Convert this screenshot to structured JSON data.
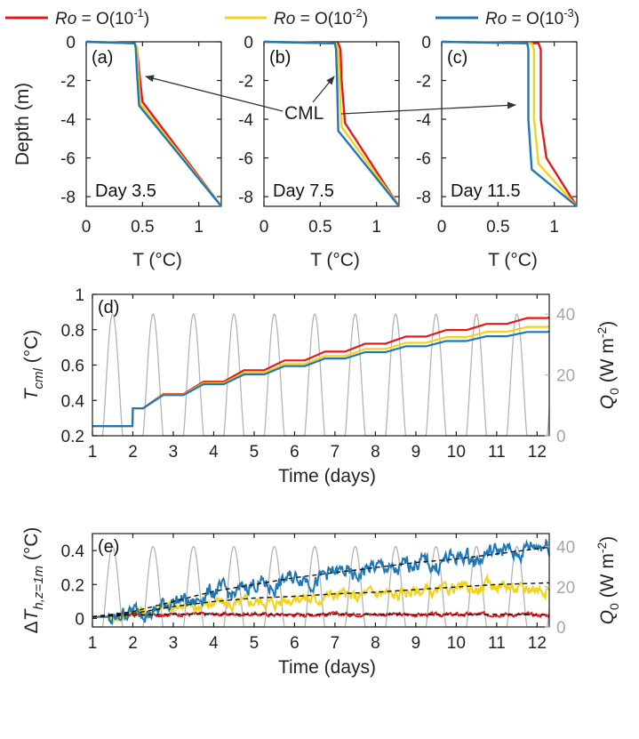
{
  "colors": {
    "ro1": "#e3191c",
    "ro2": "#f2d31b",
    "ro3": "#1f77b4",
    "forcing": "#b4b4b4",
    "mean": "#111111"
  },
  "legend": {
    "ro1": {
      "sym": "Ro",
      "eq": " = O(10",
      "exp": "-1",
      "close": ")"
    },
    "ro2": {
      "sym": "Ro",
      "eq": " = O(10",
      "exp": "-2",
      "close": ")"
    },
    "ro3": {
      "sym": "Ro",
      "eq": " = O(10",
      "exp": "-3",
      "close": ")"
    }
  },
  "annotation": "CML",
  "chart_data": [
    {
      "type": "line",
      "panel": "(a)",
      "annotation": "Day 3.5",
      "xlabel": "T (°C)",
      "ylabel": "Depth (m)",
      "xlim": [
        0,
        1.2
      ],
      "ylim": [
        -8.5,
        0
      ],
      "xticks": [
        "0",
        "0.5",
        "1"
      ],
      "yticks": [
        "0",
        "-2",
        "-4",
        "-6",
        "-8"
      ],
      "series": [
        {
          "name": "Ro = O(10^-1)",
          "x": [
            0.0,
            0.43,
            0.45,
            0.47,
            0.5,
            1.2
          ],
          "y": [
            0.0,
            -0.08,
            -0.3,
            -1.5,
            -3.1,
            -8.5
          ]
        },
        {
          "name": "Ro = O(10^-2)",
          "x": [
            0.0,
            0.43,
            0.45,
            0.46,
            0.48,
            1.2
          ],
          "y": [
            0.0,
            -0.08,
            -0.3,
            -1.5,
            -3.2,
            -8.5
          ]
        },
        {
          "name": "Ro = O(10^-3)",
          "x": [
            0.0,
            0.43,
            0.44,
            0.45,
            0.47,
            1.2
          ],
          "y": [
            0.0,
            -0.08,
            -0.3,
            -1.5,
            -3.3,
            -8.5
          ]
        }
      ]
    },
    {
      "type": "line",
      "panel": "(b)",
      "annotation": "Day 7.5",
      "xlabel": "T (°C)",
      "ylabel": "",
      "xlim": [
        0,
        1.2
      ],
      "ylim": [
        -8.5,
        0
      ],
      "xticks": [
        "0",
        "0.5",
        "1"
      ],
      "yticks": [
        "0",
        "-2",
        "-4",
        "-6",
        "-8"
      ],
      "series": [
        {
          "name": "Ro = O(10^-1)",
          "x": [
            0.0,
            0.66,
            0.68,
            0.69,
            0.72,
            1.2
          ],
          "y": [
            0.0,
            -0.08,
            -0.4,
            -2.0,
            -4.2,
            -8.5
          ]
        },
        {
          "name": "Ro = O(10^-2)",
          "x": [
            0.0,
            0.64,
            0.66,
            0.67,
            0.69,
            1.2
          ],
          "y": [
            0.0,
            -0.08,
            -0.4,
            -2.0,
            -4.4,
            -8.5
          ]
        },
        {
          "name": "Ro = O(10^-3)",
          "x": [
            0.0,
            0.63,
            0.64,
            0.65,
            0.66,
            1.2
          ],
          "y": [
            0.0,
            -0.08,
            -0.4,
            -2.0,
            -4.6,
            -8.5
          ]
        }
      ]
    },
    {
      "type": "line",
      "panel": "(c)",
      "annotation": "Day 11.5",
      "xlabel": "T (°C)",
      "ylabel": "",
      "xlim": [
        0,
        1.2
      ],
      "ylim": [
        -8.5,
        0
      ],
      "xticks": [
        "0",
        "0.5",
        "1"
      ],
      "yticks": [
        "0",
        "-2",
        "-4",
        "-6",
        "-8"
      ],
      "series": [
        {
          "name": "Ro = O(10^-1)",
          "x": [
            0.0,
            0.86,
            0.88,
            0.88,
            0.88,
            0.93,
            1.2
          ],
          "y": [
            0.0,
            -0.08,
            -0.4,
            -1.5,
            -4.0,
            -6.0,
            -8.5
          ]
        },
        {
          "name": "Ro = O(10^-2)",
          "x": [
            0.0,
            0.8,
            0.82,
            0.82,
            0.82,
            0.86,
            1.2
          ],
          "y": [
            0.0,
            -0.08,
            -0.4,
            -1.5,
            -4.0,
            -6.3,
            -8.5
          ]
        },
        {
          "name": "Ro = O(10^-3)",
          "x": [
            0.0,
            0.76,
            0.77,
            0.77,
            0.77,
            0.8,
            1.2
          ],
          "y": [
            0.0,
            -0.08,
            -0.4,
            -1.5,
            -4.0,
            -6.6,
            -8.5
          ]
        }
      ]
    },
    {
      "type": "line",
      "panel": "(d)",
      "xlabel": "Time (days)",
      "ylabel": "T_cml (°C)",
      "ylabel2": "Q_0 (W m^-2)",
      "xlim": [
        1,
        12.3
      ],
      "ylim": [
        0.2,
        1.0
      ],
      "ylim2": [
        0,
        46.5
      ],
      "xticks": [
        "1",
        "2",
        "3",
        "4",
        "5",
        "6",
        "7",
        "8",
        "9",
        "10",
        "11",
        "12"
      ],
      "yticks": [
        "0.2",
        "0.4",
        "0.6",
        "0.8",
        "1"
      ],
      "yticks2": [
        "0",
        "20",
        "40"
      ],
      "forcing": {
        "peak": 40,
        "period_days": 1,
        "first_peak_day": 1.5
      },
      "series": [
        {
          "name": "Ro = O(10^-1)",
          "start": 0.255,
          "daily_steps": [
            0.0,
            0.1,
            0.081,
            0.07,
            0.065,
            0.055,
            0.05,
            0.045,
            0.04,
            0.037,
            0.035,
            0.033
          ]
        },
        {
          "name": "Ro = O(10^-2)",
          "start": 0.255,
          "daily_steps": [
            0.0,
            0.1,
            0.078,
            0.065,
            0.058,
            0.05,
            0.045,
            0.04,
            0.035,
            0.032,
            0.03,
            0.028
          ]
        },
        {
          "name": "Ro = O(10^-3)",
          "start": 0.255,
          "daily_steps": [
            0.0,
            0.1,
            0.075,
            0.062,
            0.055,
            0.047,
            0.043,
            0.036,
            0.033,
            0.03,
            0.027,
            0.024
          ]
        }
      ]
    },
    {
      "type": "line",
      "panel": "(e)",
      "xlabel": "Time (days)",
      "ylabel": "ΔT_h,z=1m (°C)",
      "ylabel2": "Q_0 (W m^-2)",
      "xlim": [
        1,
        12.3
      ],
      "ylim": [
        -0.05,
        0.5
      ],
      "ylim2": [
        0,
        46.5
      ],
      "xticks": [
        "1",
        "2",
        "3",
        "4",
        "5",
        "6",
        "7",
        "8",
        "9",
        "10",
        "11",
        "12"
      ],
      "yticks": [
        "0",
        "0.2",
        "0.4"
      ],
      "yticks2": [
        "0",
        "20",
        "40"
      ],
      "forcing": {
        "peak": 40,
        "period_days": 1,
        "first_peak_day": 1.5
      },
      "series": [
        {
          "name": "Ro = O(10^-1)",
          "x": [
            1,
            2,
            3,
            4,
            5,
            6,
            7,
            8,
            9,
            10,
            11,
            12.3
          ],
          "y": [
            0.01,
            0.02,
            0.025,
            0.025,
            0.025,
            0.022,
            0.025,
            0.025,
            0.022,
            0.022,
            0.025,
            0.02
          ]
        },
        {
          "name": "Ro = O(10^-2)",
          "x": [
            1,
            2,
            3,
            4,
            5,
            6,
            7,
            8,
            9,
            10,
            11,
            12.3
          ],
          "y": [
            0.01,
            0.03,
            0.08,
            0.09,
            0.1,
            0.12,
            0.14,
            0.15,
            0.16,
            0.18,
            0.2,
            0.17
          ]
        },
        {
          "name": "Ro = O(10^-3)",
          "x": [
            1,
            2,
            3,
            4,
            5,
            6,
            7,
            8,
            9,
            10,
            11,
            12.3
          ],
          "y": [
            0.01,
            0.04,
            0.1,
            0.16,
            0.2,
            0.24,
            0.27,
            0.3,
            0.33,
            0.36,
            0.4,
            0.44
          ]
        }
      ],
      "trend_lines": [
        {
          "x": [
            1,
            2,
            3,
            4,
            5,
            6,
            7,
            8,
            9,
            10,
            11,
            12.3
          ],
          "y": [
            0.01,
            0.02,
            0.025,
            0.025,
            0.025,
            0.022,
            0.025,
            0.025,
            0.022,
            0.022,
            0.025,
            0.02
          ]
        },
        {
          "x": [
            1,
            2,
            3,
            4,
            5,
            6,
            7,
            8,
            9,
            10,
            11,
            12.3
          ],
          "y": [
            0.01,
            0.03,
            0.07,
            0.1,
            0.12,
            0.13,
            0.145,
            0.155,
            0.17,
            0.185,
            0.2,
            0.21
          ]
        },
        {
          "x": [
            1,
            2,
            3,
            4,
            5,
            6,
            7,
            8,
            9,
            10,
            11,
            12.3
          ],
          "y": [
            0.01,
            0.04,
            0.1,
            0.16,
            0.2,
            0.24,
            0.27,
            0.3,
            0.33,
            0.35,
            0.38,
            0.42
          ]
        }
      ]
    }
  ]
}
